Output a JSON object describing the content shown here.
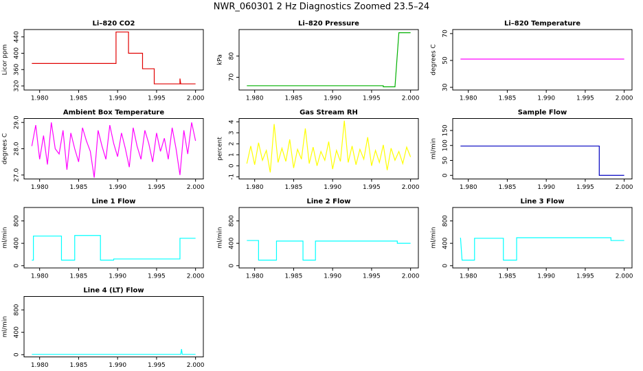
{
  "title": "NWR_060301  2 Hz Diagnostics Zoomed 23.5–24",
  "chart_data": [
    {
      "type": "line",
      "title": "Li–820 CO2",
      "ylabel": "Licor ppm",
      "color": "#e00000",
      "x": [
        1.979,
        1.9898,
        1.9898,
        1.9914,
        1.9914,
        1.9932,
        1.9932,
        1.9947,
        1.9947,
        1.998,
        1.998,
        1.9981,
        2.0
      ],
      "values": [
        375,
        375,
        452,
        452,
        400,
        400,
        362,
        362,
        325,
        325,
        338,
        325,
        325
      ],
      "xlim": [
        1.978,
        2.001
      ],
      "xticks": [
        {
          "value": 1.98,
          "label": "1.980"
        },
        1.985,
        {
          "value": 1.99,
          "label": "1.990"
        },
        1.995,
        {
          "value": 2.0,
          "label": "2.000"
        }
      ],
      "ylim": [
        310,
        458
      ],
      "yticks": [
        320,
        360,
        400,
        440
      ]
    },
    {
      "type": "line",
      "title": "Li–820 Pressure",
      "ylabel": "kPa",
      "color": "#00b000",
      "x": [
        1.979,
        1.9965,
        1.9965,
        1.998,
        1.9985,
        2.0
      ],
      "values": [
        66,
        66,
        65.5,
        65.5,
        91,
        91
      ],
      "xlim": [
        1.978,
        2.001
      ],
      "xticks": [
        {
          "value": 1.98,
          "label": "1.980"
        },
        1.985,
        {
          "value": 1.99,
          "label": "1.990"
        },
        1.995,
        {
          "value": 2.0,
          "label": "2.000"
        }
      ],
      "ylim": [
        64,
        92.5
      ],
      "yticks": [
        70,
        80
      ]
    },
    {
      "type": "line",
      "title": "Li–820 Temperature",
      "ylabel": "degrees C",
      "color": "#ff00ff",
      "x": [
        1.979,
        2.0
      ],
      "values": [
        51,
        51
      ],
      "xlim": [
        1.978,
        2.001
      ],
      "xticks": [
        {
          "value": 1.98,
          "label": "1.980"
        },
        1.985,
        {
          "value": 1.99,
          "label": "1.990"
        },
        1.995,
        {
          "value": 2.0,
          "label": "2.000"
        }
      ],
      "ylim": [
        28,
        73
      ],
      "yticks": [
        30,
        50,
        70
      ]
    },
    {
      "type": "line",
      "title": "Ambient Box Temperature",
      "ylabel": "degrees C",
      "color": "#ff00ff",
      "x": [
        1.979,
        1.9795,
        1.98,
        1.9805,
        1.981,
        1.9815,
        1.982,
        1.9825,
        1.983,
        1.9835,
        1.984,
        1.9845,
        1.985,
        1.9855,
        1.986,
        1.9865,
        1.987,
        1.9875,
        1.988,
        1.9885,
        1.989,
        1.9895,
        1.99,
        1.9905,
        1.991,
        1.9915,
        1.992,
        1.9925,
        1.993,
        1.9935,
        1.994,
        1.9945,
        1.995,
        1.9955,
        1.996,
        1.9965,
        1.997,
        1.9975,
        1.998,
        1.9985,
        1.999,
        1.9995,
        2.0
      ],
      "values": [
        28.1,
        28.9,
        27.6,
        28.5,
        27.4,
        29.0,
        28.0,
        27.8,
        28.7,
        27.2,
        28.6,
        28.0,
        27.5,
        28.8,
        28.3,
        27.9,
        26.9,
        28.7,
        28.1,
        27.6,
        28.9,
        28.2,
        27.7,
        28.6,
        28.0,
        27.3,
        28.8,
        28.1,
        27.6,
        28.7,
        28.2,
        27.5,
        28.6,
        27.9,
        28.4,
        27.6,
        28.8,
        28.0,
        27.0,
        28.7,
        27.8,
        29.0,
        28.3
      ],
      "xlim": [
        1.978,
        2.001
      ],
      "xticks": [
        {
          "value": 1.98,
          "label": "1.980"
        },
        1.985,
        {
          "value": 1.99,
          "label": "1.990"
        },
        1.995,
        {
          "value": 2.0,
          "label": "2.000"
        }
      ],
      "ylim": [
        26.85,
        29.15
      ],
      "yticks": [
        {
          "value": 27,
          "label": "27.0"
        },
        {
          "value": 28,
          "label": "28.0"
        },
        {
          "value": 29,
          "label": "29.0"
        }
      ]
    },
    {
      "type": "line",
      "title": "Gas Stream RH",
      "ylabel": "percent",
      "color": "#ffff00",
      "x": [
        1.979,
        1.9795,
        1.98,
        1.9805,
        1.981,
        1.9815,
        1.982,
        1.9825,
        1.983,
        1.9835,
        1.984,
        1.9845,
        1.985,
        1.9855,
        1.986,
        1.9865,
        1.987,
        1.9875,
        1.988,
        1.9885,
        1.989,
        1.9895,
        1.99,
        1.9905,
        1.991,
        1.9915,
        1.992,
        1.9925,
        1.993,
        1.9935,
        1.994,
        1.9945,
        1.995,
        1.9955,
        1.996,
        1.9965,
        1.997,
        1.9975,
        1.998,
        1.9985,
        1.999,
        1.9995,
        2.0
      ],
      "values": [
        0.2,
        1.8,
        0.1,
        2.1,
        0.5,
        1.4,
        -0.6,
        3.8,
        0.3,
        1.6,
        0.4,
        2.4,
        -0.2,
        1.5,
        0.6,
        3.4,
        0.2,
        1.7,
        0.0,
        1.3,
        0.5,
        2.2,
        -0.3,
        1.4,
        0.4,
        4.1,
        0.3,
        1.8,
        0.1,
        1.5,
        0.6,
        2.6,
        0.0,
        1.4,
        0.3,
        1.9,
        -0.4,
        1.6,
        0.5,
        1.3,
        0.2,
        1.7,
        0.8
      ],
      "xlim": [
        1.978,
        2.001
      ],
      "xticks": [
        {
          "value": 1.98,
          "label": "1.980"
        },
        1.985,
        {
          "value": 1.99,
          "label": "1.990"
        },
        1.995,
        {
          "value": 2.0,
          "label": "2.000"
        }
      ],
      "ylim": [
        -1.2,
        4.3
      ],
      "yticks": [
        -1,
        0,
        1,
        2,
        3,
        4
      ]
    },
    {
      "type": "line",
      "title": "Sample Flow",
      "ylabel": "ml/min",
      "color": "#0000c0",
      "x": [
        1.979,
        1.9968,
        1.9968,
        2.0
      ],
      "values": [
        98,
        98,
        0,
        0
      ],
      "xlim": [
        1.978,
        2.001
      ],
      "xticks": [
        {
          "value": 1.98,
          "label": "1.980"
        },
        1.985,
        {
          "value": 1.99,
          "label": "1.990"
        },
        1.995,
        {
          "value": 2.0,
          "label": "2.000"
        }
      ],
      "ylim": [
        -12,
        190
      ],
      "yticks": [
        0,
        50,
        100,
        150
      ]
    },
    {
      "type": "line",
      "title": "Line 1 Flow",
      "ylabel": "ml/min",
      "color": "#00ffff",
      "x": [
        1.979,
        1.9792,
        1.9792,
        1.9828,
        1.9828,
        1.9845,
        1.9845,
        1.9878,
        1.9878,
        1.9895,
        1.9895,
        1.998,
        1.998,
        2.0
      ],
      "values": [
        100,
        100,
        530,
        530,
        100,
        100,
        540,
        540,
        100,
        100,
        120,
        120,
        490,
        490
      ],
      "xlim": [
        1.978,
        2.001
      ],
      "xticks": [
        {
          "value": 1.98,
          "label": "1.980"
        },
        1.985,
        {
          "value": 1.99,
          "label": "1.990"
        },
        1.995,
        {
          "value": 2.0,
          "label": "2.000"
        }
      ],
      "ylim": [
        -40,
        1040
      ],
      "yticks": [
        0,
        400,
        800
      ]
    },
    {
      "type": "line",
      "title": "Line 2 Flow",
      "ylabel": "ml/min",
      "color": "#00ffff",
      "x": [
        1.979,
        1.9805,
        1.9805,
        1.9828,
        1.9828,
        1.9862,
        1.9862,
        1.9878,
        1.9878,
        1.9983,
        1.9983,
        2.0
      ],
      "values": [
        450,
        450,
        100,
        100,
        440,
        440,
        100,
        100,
        440,
        440,
        400,
        400
      ],
      "xlim": [
        1.978,
        2.001
      ],
      "xticks": [
        {
          "value": 1.98,
          "label": "1.980"
        },
        1.985,
        {
          "value": 1.99,
          "label": "1.990"
        },
        1.995,
        {
          "value": 2.0,
          "label": "2.000"
        }
      ],
      "ylim": [
        -40,
        1040
      ],
      "yticks": [
        0,
        400,
        800
      ]
    },
    {
      "type": "line",
      "title": "Line 3 Flow",
      "ylabel": "ml/min",
      "color": "#00ffff",
      "x": [
        1.979,
        1.9792,
        1.9808,
        1.9808,
        1.9845,
        1.9845,
        1.9862,
        1.9862,
        1.9983,
        1.9983,
        2.0
      ],
      "values": [
        500,
        100,
        100,
        490,
        490,
        100,
        100,
        500,
        500,
        450,
        450
      ],
      "xlim": [
        1.978,
        2.001
      ],
      "xticks": [
        {
          "value": 1.98,
          "label": "1.980"
        },
        1.985,
        {
          "value": 1.99,
          "label": "1.990"
        },
        1.995,
        {
          "value": 2.0,
          "label": "2.000"
        }
      ],
      "ylim": [
        -40,
        1040
      ],
      "yticks": [
        0,
        400,
        800
      ]
    },
    {
      "type": "line",
      "title": "Line 4 (LT) Flow",
      "ylabel": "ml/min",
      "color": "#00ffff",
      "x": [
        1.979,
        1.9981,
        1.9982,
        1.9983,
        2.0
      ],
      "values": [
        5,
        5,
        100,
        5,
        5
      ],
      "xlim": [
        1.978,
        2.001
      ],
      "xticks": [
        {
          "value": 1.98,
          "label": "1.980"
        },
        1.985,
        {
          "value": 1.99,
          "label": "1.990"
        },
        1.995,
        {
          "value": 2.0,
          "label": "2.000"
        }
      ],
      "ylim": [
        -40,
        1040
      ],
      "yticks": [
        0,
        400,
        800
      ]
    }
  ]
}
